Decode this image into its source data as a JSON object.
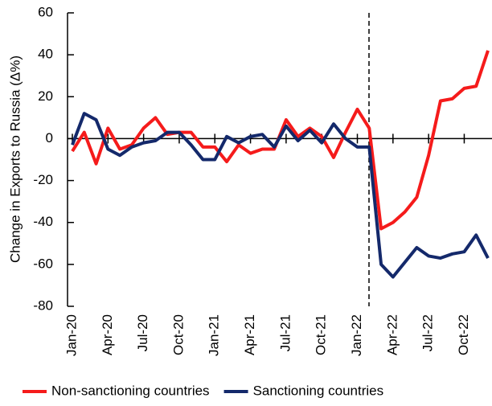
{
  "chart_data": {
    "type": "line",
    "y_label": "Change in Exports to Russia (Δ%)",
    "categories": [
      "Jan-20",
      null,
      null,
      "Apr-20",
      null,
      null,
      "Jul-20",
      null,
      null,
      "Oct-20",
      null,
      null,
      "Jan-21",
      null,
      null,
      "Apr-21",
      null,
      null,
      "Jul-21",
      null,
      null,
      "Oct-21",
      null,
      null,
      "Jan-22",
      null,
      null,
      "Apr-22",
      null,
      null,
      "Jul-22",
      null,
      null,
      "Oct-22",
      null,
      null
    ],
    "series": [
      {
        "name": "Non-sanctioning countries",
        "color": "#f51b1b",
        "values": [
          -6,
          3,
          -12,
          5,
          -5,
          -3,
          5,
          10,
          2,
          3,
          3,
          -4,
          -4,
          -11,
          -3,
          -7,
          -5,
          -5,
          9,
          1,
          5,
          1,
          -9,
          3,
          14,
          5,
          -43,
          -40,
          -35,
          -28,
          -8,
          18,
          19,
          24,
          25,
          42
        ]
      },
      {
        "name": "Sanctioning countries",
        "color": "#14296b",
        "values": [
          -3,
          12,
          9,
          -5,
          -8,
          -4,
          -2,
          -1,
          3,
          3,
          -3,
          -10,
          -10,
          1,
          -2,
          1,
          2,
          -4,
          6,
          -1,
          4,
          -2,
          7,
          0,
          -4,
          -4,
          -60,
          -66,
          -59,
          -52,
          -56,
          -57,
          -55,
          -54,
          -46,
          -57
        ]
      }
    ],
    "ylim": [
      -80,
      60
    ],
    "yticks": [
      -80,
      -60,
      -40,
      -20,
      0,
      20,
      40,
      60
    ],
    "legend": "bottom"
  }
}
